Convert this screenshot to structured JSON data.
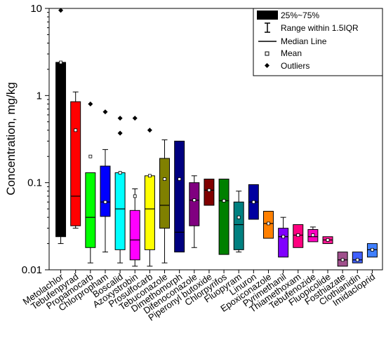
{
  "chart_data": {
    "type": "box",
    "ylabel": "Concentration, mg/kg",
    "yscale": "log",
    "ylim": [
      0.01,
      10
    ],
    "yticks": [
      {
        "value": 0.01,
        "label": "0.01"
      },
      {
        "value": 0.1,
        "label": "0.1"
      },
      {
        "value": 1,
        "label": "1"
      },
      {
        "value": 10,
        "label": "10"
      }
    ],
    "grid": false,
    "legend_placement": "top-right",
    "legend": {
      "box": "25%~75%",
      "range": "Range within 1.5IQR",
      "median": "Median Line",
      "mean": "Mean",
      "outliers": "Outliers"
    },
    "categories": [
      {
        "name": "Metolachlor",
        "color": "#000000",
        "min": 0.02,
        "q1": 0.024,
        "median": 2.4,
        "q3": 2.4,
        "max": 2.4,
        "mean": 2.4,
        "outliers": [
          9.5
        ]
      },
      {
        "name": "Tebufenpyrad",
        "color": "#ff0000",
        "min": 0.03,
        "q1": 0.032,
        "median": 0.07,
        "q3": 0.85,
        "max": 1.1,
        "mean": 0.4,
        "outliers": []
      },
      {
        "name": "Propamocarb",
        "color": "#00ff00",
        "min": 0.012,
        "q1": 0.018,
        "median": 0.04,
        "q3": 0.13,
        "max": 0.13,
        "mean": 0.2,
        "outliers": [
          0.8
        ]
      },
      {
        "name": "Chlorpropham",
        "color": "#0000ff",
        "min": 0.016,
        "q1": 0.041,
        "median": 0.06,
        "q3": 0.155,
        "max": 0.24,
        "mean": 0.06,
        "outliers": [
          0.65
        ]
      },
      {
        "name": "Boscalid",
        "color": "#00ffff",
        "min": 0.012,
        "q1": 0.017,
        "median": 0.05,
        "q3": 0.13,
        "max": 0.13,
        "mean": 0.13,
        "outliers": [
          0.55,
          0.37
        ]
      },
      {
        "name": "Azoxystrobin",
        "color": "#ff00ff",
        "min": 0.011,
        "q1": 0.013,
        "median": 0.022,
        "q3": 0.048,
        "max": 0.085,
        "mean": 0.07,
        "outliers": [
          0.55
        ]
      },
      {
        "name": "Prosulfocarb",
        "color": "#ffff00",
        "min": 0.011,
        "q1": 0.017,
        "median": 0.05,
        "q3": 0.12,
        "max": 0.12,
        "mean": 0.12,
        "outliers": [
          0.4
        ]
      },
      {
        "name": "Tebuconazole",
        "color": "#808000",
        "min": 0.012,
        "q1": 0.03,
        "median": 0.055,
        "q3": 0.19,
        "max": 0.31,
        "mean": 0.11,
        "outliers": []
      },
      {
        "name": "Dimethomorph",
        "color": "#000080",
        "min": 0.016,
        "q1": 0.016,
        "median": 0.027,
        "q3": 0.3,
        "max": 0.3,
        "mean": 0.11,
        "outliers": []
      },
      {
        "name": "Difenoconazole",
        "color": "#800080",
        "min": 0.018,
        "q1": 0.032,
        "median": 0.063,
        "q3": 0.1,
        "max": 0.12,
        "mean": 0.063,
        "outliers": []
      },
      {
        "name": "Piperonyl butoxide",
        "color": "#800000",
        "min": 0.055,
        "q1": 0.055,
        "median": 0.082,
        "q3": 0.11,
        "max": 0.11,
        "mean": 0.082,
        "outliers": []
      },
      {
        "name": "Chlorpyrifos",
        "color": "#008000",
        "min": 0.015,
        "q1": 0.015,
        "median": 0.062,
        "q3": 0.11,
        "max": 0.11,
        "mean": 0.062,
        "outliers": []
      },
      {
        "name": "Fluopyram",
        "color": "#008080",
        "min": 0.016,
        "q1": 0.017,
        "median": 0.033,
        "q3": 0.06,
        "max": 0.08,
        "mean": 0.04,
        "outliers": []
      },
      {
        "name": "Linuron",
        "color": "#0000a0",
        "min": 0.038,
        "q1": 0.038,
        "median": 0.06,
        "q3": 0.095,
        "max": 0.095,
        "mean": 0.06,
        "outliers": []
      },
      {
        "name": "Epoxiconazole",
        "color": "#ff8000",
        "min": 0.023,
        "q1": 0.023,
        "median": 0.034,
        "q3": 0.047,
        "max": 0.047,
        "mean": 0.034,
        "outliers": []
      },
      {
        "name": "Pyrimethanil",
        "color": "#8000ff",
        "min": 0.014,
        "q1": 0.014,
        "median": 0.024,
        "q3": 0.03,
        "max": 0.04,
        "mean": 0.024,
        "outliers": []
      },
      {
        "name": "Thiamethoxam",
        "color": "#ff0080",
        "min": 0.018,
        "q1": 0.018,
        "median": 0.025,
        "q3": 0.033,
        "max": 0.033,
        "mean": 0.025,
        "outliers": []
      },
      {
        "name": "Tebufenozide",
        "color": "#ff00c0",
        "min": 0.021,
        "q1": 0.021,
        "median": 0.024,
        "q3": 0.029,
        "max": 0.031,
        "mean": 0.025,
        "outliers": []
      },
      {
        "name": "Fluopicolide",
        "color": "#ff1493",
        "min": 0.02,
        "q1": 0.02,
        "median": 0.022,
        "q3": 0.024,
        "max": 0.024,
        "mean": 0.022,
        "outliers": []
      },
      {
        "name": "Fosthiazate",
        "color": "#a0508c",
        "min": 0.011,
        "q1": 0.011,
        "median": 0.013,
        "q3": 0.016,
        "max": 0.016,
        "mean": 0.013,
        "outliers": []
      },
      {
        "name": "Clothianidin",
        "color": "#4060ff",
        "min": 0.012,
        "q1": 0.012,
        "median": 0.013,
        "q3": 0.016,
        "max": 0.016,
        "mean": 0.013,
        "outliers": []
      },
      {
        "name": "Imidacloprid",
        "color": "#4080ff",
        "min": 0.014,
        "q1": 0.014,
        "median": 0.017,
        "q3": 0.02,
        "max": 0.02,
        "mean": 0.017,
        "outliers": []
      }
    ]
  }
}
